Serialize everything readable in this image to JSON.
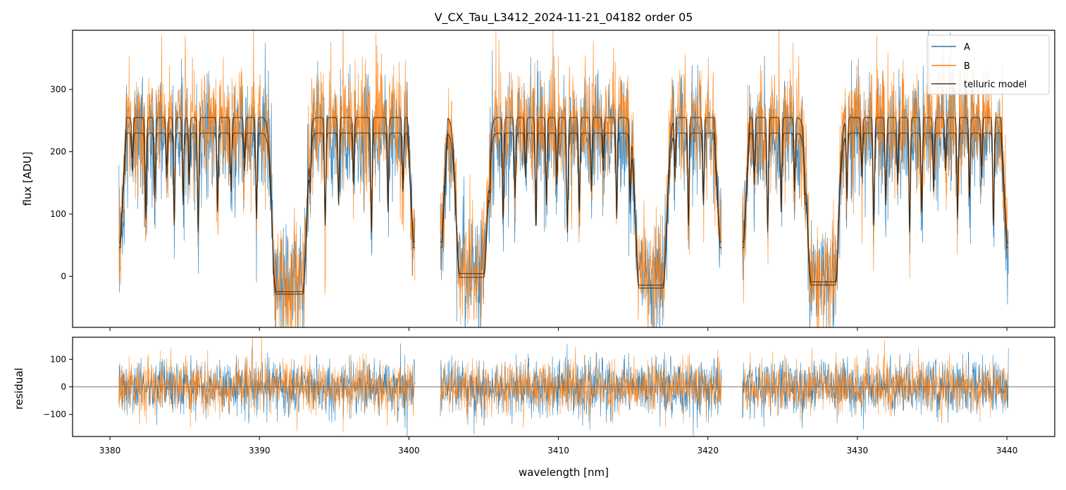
{
  "figure": {
    "title": "V_CX_Tau_L3412_2024-11-21_04182  order 05"
  },
  "chart_data": [
    {
      "type": "line",
      "panel": "flux",
      "title": "V_CX_Tau_L3412_2024-11-21_04182  order 05",
      "xlabel": "",
      "ylabel": "flux [ADU]",
      "xlim": [
        3377.5,
        3443.2
      ],
      "ylim": [
        -82,
        395
      ],
      "xticks": [
        3380,
        3390,
        3400,
        3410,
        3420,
        3430,
        3440
      ],
      "xtick_labels_shown": false,
      "yticks": [
        0,
        100,
        200,
        300
      ],
      "ytick_labels": [
        "0",
        "100",
        "200",
        "300"
      ],
      "grid": false,
      "legend_position": "top-right",
      "legend": [
        "A",
        "B",
        "telluric model"
      ],
      "segments": [
        {
          "start": 3380.6,
          "end": 3400.4
        },
        {
          "start": 3402.1,
          "end": 3420.9
        },
        {
          "start": 3422.3,
          "end": 3440.1
        }
      ],
      "series": [
        {
          "name": "A",
          "color": "#1f77b4",
          "noise_amplitude": 55,
          "description_of_values": "noisy measured flux around continuum ~230 with deep telluric absorption bands"
        },
        {
          "name": "B",
          "color": "#ff7f0e",
          "noise_amplitude": 55,
          "description_of_values": "noisy measured flux around continuum ~250"
        },
        {
          "name": "telluric model",
          "color": "#3a2410",
          "continuum_levels": [
            230,
            250
          ],
          "absorption_bands": [
            {
              "center": 3392.0,
              "width": 0.9,
              "depth": 1.06
            },
            {
              "center": 3404.2,
              "width": 0.8,
              "depth": 0.95
            },
            {
              "center": 3416.2,
              "width": 0.8,
              "depth": 1.02
            },
            {
              "center": 3427.7,
              "width": 0.8,
              "depth": 1.0
            }
          ],
          "absorption_lines": [
            3381.5,
            3382.4,
            3383.0,
            3383.8,
            3384.3,
            3384.9,
            3385.3,
            3385.9,
            3387.2,
            3388.1,
            3389.0,
            3389.8,
            3391.0,
            3393.4,
            3394.4,
            3395.3,
            3396.3,
            3397.5,
            3398.6,
            3399.6,
            3405.4,
            3406.3,
            3407.1,
            3407.8,
            3408.5,
            3409.2,
            3409.9,
            3410.6,
            3411.4,
            3412.2,
            3413.0,
            3413.9,
            3414.8,
            3417.8,
            3418.7,
            3419.7,
            3423.1,
            3424.0,
            3424.9,
            3425.8,
            3426.5,
            3428.6,
            3429.3,
            3430.3,
            3431.1,
            3431.9,
            3432.7,
            3433.5,
            3434.3,
            3435.1,
            3435.9,
            3436.7,
            3437.5,
            3438.3,
            3439.1
          ]
        }
      ]
    },
    {
      "type": "line",
      "panel": "residual",
      "xlabel": "wavelength [nm]",
      "ylabel": "residual",
      "xlim": [
        3377.5,
        3443.2
      ],
      "ylim": [
        -180,
        180
      ],
      "xticks": [
        3380,
        3390,
        3400,
        3410,
        3420,
        3430,
        3440
      ],
      "xtick_labels": [
        "3380",
        "3390",
        "3400",
        "3410",
        "3420",
        "3430",
        "3440"
      ],
      "yticks": [
        -100,
        0,
        100
      ],
      "ytick_labels": [
        "−100",
        "0",
        "100"
      ],
      "zero_line": true,
      "series": [
        {
          "name": "A",
          "color": "#1f77b4",
          "noise_amplitude": 60
        },
        {
          "name": "B",
          "color": "#ff7f0e",
          "noise_amplitude": 55
        }
      ]
    }
  ]
}
